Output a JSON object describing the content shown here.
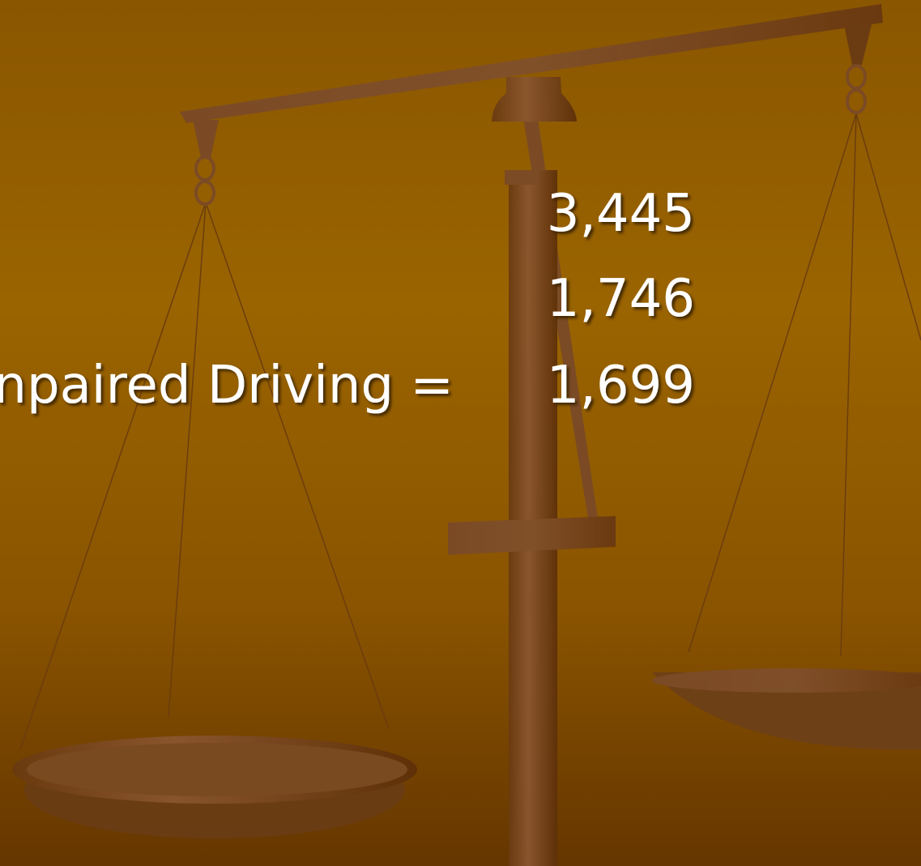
{
  "slide": {
    "rows": [
      {
        "value": "3,445"
      },
      {
        "value": "1,746"
      },
      {
        "label": "npaired Driving =",
        "value": "1,699"
      }
    ]
  }
}
